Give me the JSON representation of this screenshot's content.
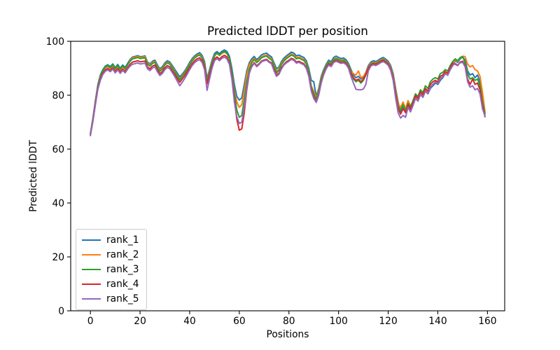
{
  "chart_data": {
    "type": "line",
    "title": "Predicted lDDT per position",
    "xlabel": "Positions",
    "ylabel": "Predicted lDDT",
    "xlim": [
      -7.95,
      166.95
    ],
    "ylim": [
      0,
      100
    ],
    "x_ticks": [
      0,
      20,
      40,
      60,
      80,
      100,
      120,
      140,
      160
    ],
    "y_ticks": [
      0,
      20,
      40,
      60,
      80,
      100
    ],
    "grid": false,
    "legend_position": "lower left",
    "x_start": 0,
    "x_step": 1,
    "n_points": 160,
    "series": [
      {
        "name": "rank_1",
        "color": "#1f77b4",
        "values": [
          65.8,
          71.5,
          78.0,
          84.0,
          87.5,
          89.5,
          90.8,
          91.3,
          90.6,
          91.6,
          90.2,
          91.4,
          90.0,
          91.2,
          90.3,
          91.8,
          93.3,
          94.2,
          94.4,
          94.7,
          94.3,
          94.4,
          94.6,
          92.3,
          91.6,
          92.6,
          93.0,
          91.2,
          89.8,
          90.6,
          92.0,
          92.8,
          92.3,
          91.0,
          89.6,
          88.2,
          86.8,
          87.8,
          89.0,
          90.5,
          92.2,
          93.6,
          94.6,
          95.3,
          95.8,
          94.8,
          92.5,
          86.2,
          89.5,
          93.0,
          95.5,
          96.2,
          95.4,
          96.3,
          96.8,
          96.2,
          94.5,
          90.0,
          84.0,
          79.5,
          78.2,
          79.0,
          84.0,
          89.0,
          92.0,
          93.5,
          94.4,
          93.2,
          94.0,
          95.0,
          95.4,
          95.6,
          94.8,
          94.2,
          92.0,
          89.8,
          90.5,
          92.5,
          93.8,
          94.6,
          95.3,
          96.0,
          95.6,
          94.6,
          94.9,
          94.4,
          94.0,
          92.8,
          90.0,
          85.5,
          85.0,
          79.5,
          82.5,
          87.0,
          89.5,
          91.5,
          93.0,
          92.4,
          94.0,
          94.5,
          94.0,
          93.6,
          93.8,
          93.2,
          91.8,
          89.5,
          87.5,
          86.5,
          87.0,
          86.0,
          86.8,
          88.5,
          91.0,
          92.3,
          92.8,
          92.5,
          93.0,
          93.6,
          94.0,
          93.4,
          92.6,
          91.0,
          88.0,
          82.5,
          77.5,
          74.0,
          75.5,
          74.5,
          77.5,
          75.5,
          77.0,
          79.0,
          78.0,
          80.5,
          79.5,
          81.5,
          80.5,
          82.5,
          83.5,
          84.5,
          84.0,
          85.5,
          86.5,
          88.0,
          87.5,
          89.5,
          91.0,
          92.8,
          92.2,
          93.5,
          94.2,
          93.0,
          89.0,
          87.5,
          88.0,
          86.5,
          87.5,
          85.0,
          79.0,
          73.5
        ]
      },
      {
        "name": "rank_2",
        "color": "#ff7f0e",
        "values": [
          65.6,
          71.2,
          77.6,
          83.5,
          87.0,
          88.9,
          90.1,
          90.6,
          89.9,
          91.0,
          89.5,
          90.7,
          89.3,
          90.5,
          89.6,
          91.2,
          92.9,
          93.9,
          94.1,
          94.4,
          94.0,
          94.1,
          94.3,
          91.9,
          91.2,
          92.2,
          92.5,
          90.7,
          89.3,
          90.1,
          91.5,
          92.3,
          91.8,
          90.4,
          89.0,
          87.4,
          86.0,
          87.2,
          88.4,
          89.9,
          91.6,
          93.0,
          94.1,
          94.8,
          95.2,
          94.2,
          91.8,
          85.3,
          88.8,
          92.3,
          94.8,
          95.5,
          94.7,
          95.5,
          96.0,
          95.4,
          93.6,
          88.8,
          82.0,
          77.5,
          75.5,
          76.5,
          82.0,
          87.8,
          91.2,
          92.8,
          93.7,
          92.5,
          93.3,
          94.3,
          94.7,
          94.9,
          94.1,
          93.5,
          91.2,
          88.9,
          89.7,
          91.8,
          93.1,
          94.0,
          94.6,
          95.3,
          94.9,
          93.9,
          94.2,
          93.7,
          93.3,
          92.0,
          89.0,
          83.5,
          81.5,
          79.0,
          82.0,
          86.5,
          89.0,
          91.0,
          92.4,
          91.8,
          93.3,
          93.8,
          93.4,
          93.0,
          93.2,
          92.6,
          91.2,
          88.8,
          88.0,
          87.5,
          89.0,
          86.5,
          87.0,
          88.3,
          90.5,
          91.8,
          92.3,
          92.0,
          92.5,
          93.1,
          93.5,
          92.9,
          92.1,
          90.4,
          87.3,
          81.8,
          76.8,
          75.5,
          77.5,
          75.0,
          78.0,
          76.0,
          77.5,
          79.5,
          78.5,
          81.0,
          80.0,
          82.0,
          81.0,
          83.0,
          84.0,
          85.0,
          84.5,
          86.0,
          87.0,
          88.5,
          88.0,
          90.0,
          91.5,
          93.2,
          92.6,
          93.9,
          94.5,
          94.3,
          91.5,
          90.5,
          91.0,
          89.5,
          89.0,
          87.0,
          81.0,
          74.0
        ]
      },
      {
        "name": "rank_3",
        "color": "#2ca02c",
        "values": [
          65.5,
          71.0,
          77.3,
          83.2,
          86.8,
          89.2,
          90.5,
          91.0,
          90.2,
          91.3,
          89.9,
          91.0,
          89.7,
          90.8,
          89.9,
          91.4,
          92.6,
          93.5,
          93.7,
          94.0,
          93.6,
          93.7,
          93.9,
          91.5,
          90.8,
          91.8,
          92.2,
          90.3,
          88.9,
          89.7,
          91.2,
          92.0,
          91.5,
          90.1,
          88.7,
          87.1,
          85.7,
          86.9,
          88.1,
          89.6,
          91.3,
          92.7,
          93.8,
          94.5,
          94.9,
          93.9,
          91.5,
          85.0,
          88.5,
          92.0,
          94.5,
          95.7,
          94.9,
          95.8,
          96.2,
          95.6,
          93.9,
          89.0,
          81.0,
          74.5,
          71.8,
          72.5,
          78.5,
          85.0,
          89.5,
          92.0,
          93.3,
          92.1,
          92.9,
          93.9,
          94.3,
          94.5,
          93.7,
          93.1,
          90.8,
          88.3,
          89.2,
          91.4,
          92.7,
          93.6,
          94.2,
          94.9,
          94.5,
          93.5,
          93.8,
          93.3,
          92.9,
          91.6,
          88.5,
          83.0,
          80.5,
          78.5,
          81.5,
          86.0,
          88.8,
          90.8,
          92.2,
          91.6,
          93.1,
          93.6,
          93.2,
          92.8,
          93.0,
          92.4,
          91.0,
          88.5,
          86.0,
          85.0,
          85.5,
          84.5,
          85.5,
          87.5,
          90.2,
          91.5,
          92.0,
          91.7,
          92.2,
          92.8,
          93.2,
          92.6,
          91.8,
          90.0,
          86.8,
          81.0,
          75.5,
          74.5,
          76.5,
          74.0,
          77.0,
          75.8,
          78.0,
          80.5,
          79.5,
          82.0,
          81.0,
          83.5,
          82.5,
          85.0,
          86.0,
          86.5,
          86.0,
          88.0,
          88.5,
          89.5,
          89.0,
          91.0,
          92.5,
          93.5,
          92.8,
          94.0,
          94.3,
          92.0,
          88.0,
          86.0,
          86.5,
          85.5,
          86.0,
          83.5,
          77.5,
          73.0
        ]
      },
      {
        "name": "rank_4",
        "color": "#d62728",
        "values": [
          65.3,
          70.6,
          76.8,
          82.6,
          86.0,
          88.2,
          89.4,
          89.9,
          89.2,
          90.2,
          88.8,
          89.9,
          88.6,
          89.7,
          88.8,
          90.2,
          91.5,
          92.3,
          92.5,
          92.8,
          92.4,
          92.5,
          92.7,
          90.5,
          89.8,
          90.8,
          91.2,
          89.4,
          88.0,
          88.8,
          90.2,
          91.0,
          90.5,
          89.1,
          87.7,
          86.2,
          84.8,
          86.0,
          87.2,
          88.7,
          90.3,
          91.7,
          92.8,
          93.5,
          93.9,
          92.9,
          90.5,
          84.2,
          87.5,
          91.0,
          93.5,
          94.2,
          93.4,
          94.3,
          94.8,
          94.2,
          92.2,
          87.0,
          78.5,
          71.0,
          67.0,
          67.5,
          73.5,
          82.0,
          88.0,
          90.8,
          92.1,
          90.9,
          91.7,
          92.7,
          93.1,
          93.3,
          92.5,
          91.9,
          89.6,
          87.5,
          88.2,
          90.2,
          91.5,
          92.4,
          93.0,
          93.7,
          93.3,
          92.3,
          92.6,
          92.1,
          91.7,
          90.4,
          87.5,
          82.0,
          79.5,
          77.5,
          80.5,
          85.0,
          88.0,
          90.2,
          91.6,
          91.0,
          92.5,
          93.0,
          92.6,
          92.2,
          92.4,
          91.8,
          90.4,
          88.0,
          86.5,
          85.5,
          86.0,
          85.0,
          86.0,
          87.8,
          90.0,
          91.2,
          91.7,
          91.4,
          91.9,
          92.5,
          92.9,
          92.3,
          91.5,
          89.7,
          86.4,
          80.5,
          75.0,
          73.0,
          75.0,
          73.5,
          76.5,
          74.8,
          77.2,
          79.8,
          78.8,
          81.2,
          80.2,
          82.5,
          81.5,
          84.0,
          85.0,
          85.5,
          85.0,
          87.0,
          87.5,
          88.8,
          88.2,
          90.3,
          91.8,
          91.5,
          91.0,
          92.3,
          92.6,
          91.0,
          86.0,
          84.0,
          86.0,
          84.0,
          84.5,
          82.0,
          76.0,
          72.0
        ]
      },
      {
        "name": "rank_5",
        "color": "#9467bd",
        "values": [
          65.0,
          70.3,
          76.4,
          82.2,
          85.5,
          87.7,
          88.9,
          89.4,
          88.7,
          89.7,
          88.3,
          89.4,
          88.1,
          89.2,
          88.3,
          89.7,
          90.8,
          91.5,
          91.7,
          92.0,
          91.6,
          91.7,
          91.9,
          89.8,
          89.1,
          90.1,
          90.5,
          88.7,
          87.3,
          88.1,
          89.5,
          90.3,
          89.8,
          88.4,
          86.9,
          85.2,
          83.5,
          84.8,
          86.2,
          87.8,
          89.5,
          91.0,
          92.1,
          92.8,
          93.2,
          92.2,
          89.5,
          81.8,
          86.0,
          90.0,
          92.8,
          93.6,
          92.8,
          93.7,
          94.1,
          93.5,
          91.5,
          86.0,
          77.5,
          72.0,
          69.5,
          70.0,
          75.5,
          82.8,
          88.3,
          90.5,
          91.8,
          90.6,
          91.4,
          92.4,
          92.8,
          93.0,
          92.2,
          91.6,
          89.0,
          87.0,
          87.8,
          89.8,
          91.2,
          92.0,
          92.6,
          93.3,
          92.9,
          91.9,
          92.2,
          91.7,
          91.3,
          90.0,
          87.0,
          81.5,
          78.8,
          77.3,
          80.0,
          84.5,
          87.6,
          89.8,
          91.2,
          90.6,
          92.1,
          92.6,
          92.2,
          91.8,
          92.0,
          91.4,
          90.0,
          87.0,
          84.5,
          82.2,
          82.0,
          82.0,
          82.3,
          84.0,
          89.0,
          90.8,
          91.3,
          91.0,
          91.5,
          92.1,
          92.5,
          91.9,
          91.1,
          89.2,
          85.5,
          79.0,
          73.5,
          71.5,
          72.5,
          71.8,
          75.5,
          73.8,
          76.2,
          78.8,
          77.8,
          80.2,
          79.2,
          81.5,
          80.5,
          83.0,
          84.0,
          84.8,
          84.3,
          86.2,
          86.8,
          88.0,
          87.4,
          89.5,
          91.0,
          91.8,
          91.2,
          92.0,
          92.2,
          90.5,
          85.0,
          83.0,
          83.5,
          82.0,
          82.5,
          80.5,
          75.0,
          72.3
        ]
      }
    ]
  }
}
